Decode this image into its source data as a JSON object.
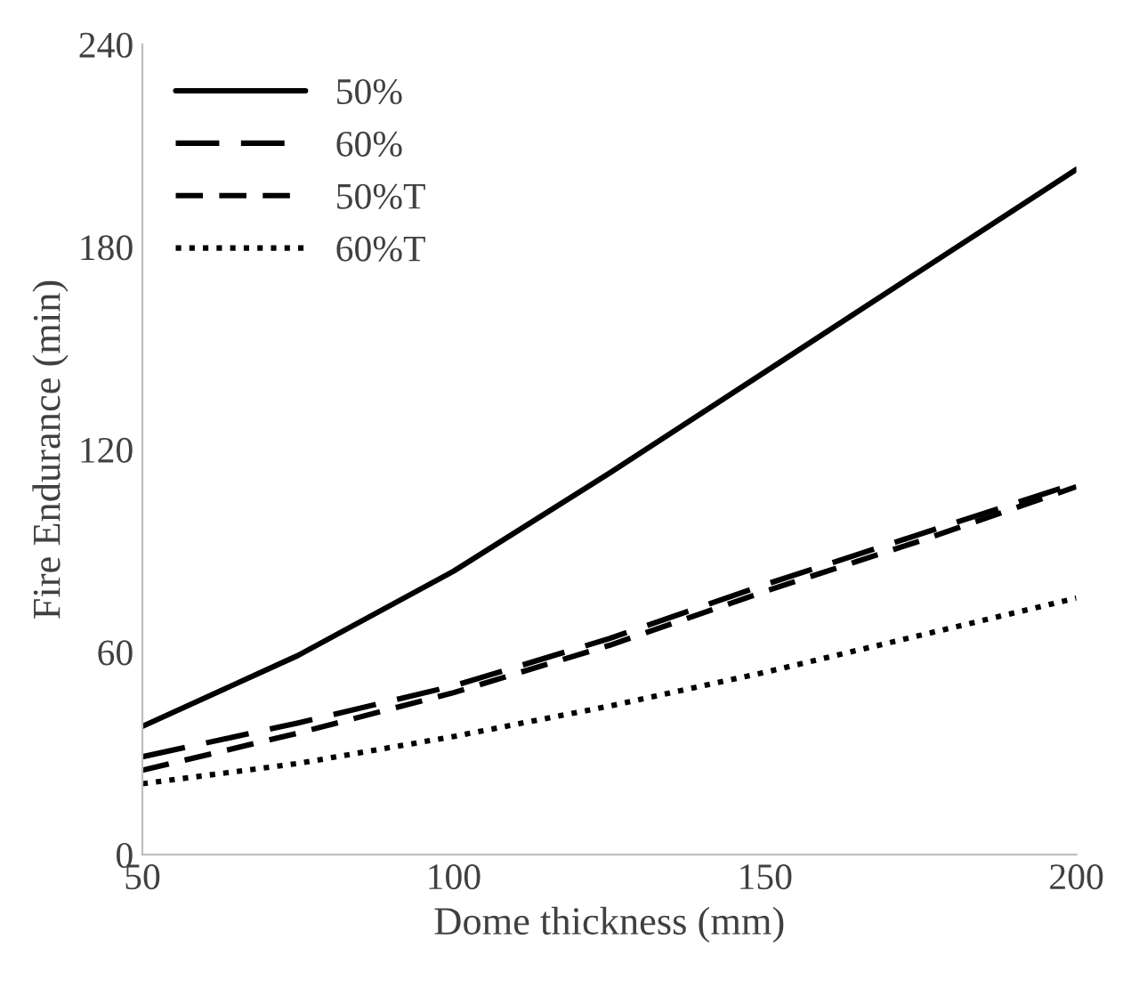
{
  "chart_data": {
    "type": "line",
    "xlabel": "Dome thickness (mm)",
    "ylabel": "Fire Endurance (min)",
    "x": [
      50,
      75,
      100,
      125,
      150,
      175,
      200
    ],
    "series": [
      {
        "name": "50%",
        "color": "#000000",
        "line_style": "solid",
        "values": [
          38,
          59,
          84,
          113,
          143,
          173,
          203
        ]
      },
      {
        "name": "60%",
        "color": "#000000",
        "line_style": "dashed",
        "values": [
          29,
          39,
          50,
          64,
          80,
          95,
          110
        ]
      },
      {
        "name": "50%T",
        "color": "#000000",
        "line_style": "dashed",
        "values": [
          25,
          36,
          48,
          62,
          78,
          93,
          109
        ]
      },
      {
        "name": "60%T",
        "color": "#000000",
        "line_style": "dotted",
        "values": [
          21,
          27,
          35,
          44,
          54,
          65,
          76
        ]
      }
    ],
    "xlim": [
      50,
      200
    ],
    "xticks": [
      50,
      100,
      150,
      200
    ],
    "ylim": [
      0,
      240
    ],
    "yticks": [
      0,
      60,
      120,
      180,
      240
    ],
    "legend": "top left",
    "grid": false,
    "marker": "none"
  }
}
